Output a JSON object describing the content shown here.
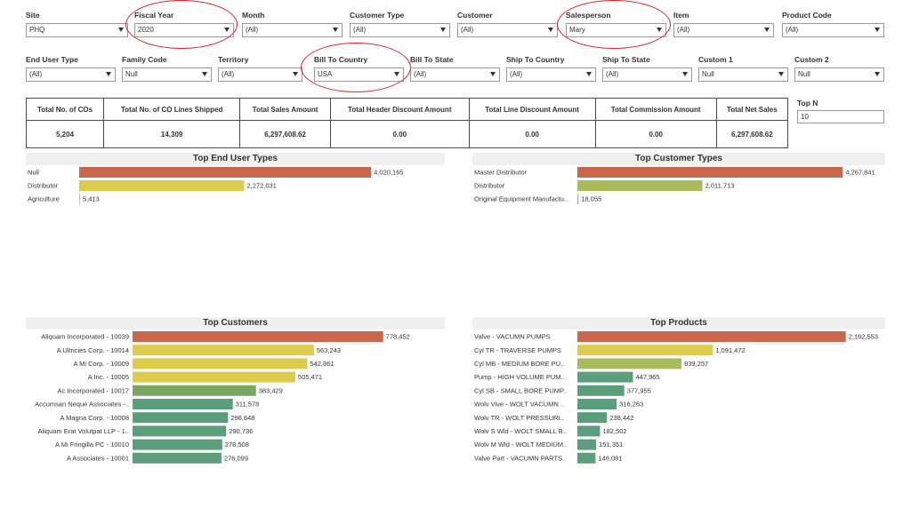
{
  "filters": [
    {
      "id": "site",
      "label": "Site",
      "value": "PHQ"
    },
    {
      "id": "fiscal-year",
      "label": "Fiscal Year",
      "value": "2020"
    },
    {
      "id": "month",
      "label": "Month",
      "value": "(All)"
    },
    {
      "id": "customer-type",
      "label": "Customer Type",
      "value": "(All)"
    },
    {
      "id": "customer",
      "label": "Customer",
      "value": "(All)"
    },
    {
      "id": "salesperson",
      "label": "Salesperson",
      "value": "Mary"
    },
    {
      "id": "item",
      "label": "Item",
      "value": "(All)"
    },
    {
      "id": "product-code",
      "label": "Product Code",
      "value": "(All)"
    },
    {
      "id": "end-user-type",
      "label": "End User Type",
      "value": "(All)"
    },
    {
      "id": "family-code",
      "label": "Family Code",
      "value": "Null"
    },
    {
      "id": "territory",
      "label": "Territory",
      "value": "(All)"
    },
    {
      "id": "bill-to-country",
      "label": "Bill To Country",
      "value": "USA"
    },
    {
      "id": "bill-to-state",
      "label": "Bill To State",
      "value": "(All)"
    },
    {
      "id": "ship-to-country",
      "label": "Ship To Country",
      "value": "(All)"
    },
    {
      "id": "ship-to-state",
      "label": "Ship To State",
      "value": "(All)"
    },
    {
      "id": "custom-1",
      "label": "Custom 1",
      "value": "Null"
    },
    {
      "id": "custom-2",
      "label": "Custom 2",
      "value": "Null"
    }
  ],
  "kpis": {
    "headers": [
      "Total No. of COs",
      "Total No. of CO Lines Shipped",
      "Total Sales Amount",
      "Total Header Discount Amount",
      "Total Line Discount Amount",
      "Total Commission Amount",
      "Total Net Sales"
    ],
    "values": [
      "5,204",
      "14,309",
      "6,297,608.62",
      "0.00",
      "0.00",
      "0.00",
      "6,297,608.62"
    ]
  },
  "top_n": {
    "label": "Top N",
    "value": "10"
  },
  "chart_data": [
    {
      "type": "bar",
      "orientation": "horizontal",
      "title": "Top End User Types",
      "categories": [
        "Null",
        "Distributor",
        "Agriculture"
      ],
      "values": [
        4020165,
        2272031,
        5413
      ],
      "value_labels": [
        "4,020,165",
        "2,272,031",
        "5,413"
      ],
      "colors": [
        "#c9674c",
        "#ddcb4b",
        "#ddcb4b"
      ],
      "label_align": "left",
      "xlim": [
        0,
        4900000
      ]
    },
    {
      "type": "bar",
      "orientation": "horizontal",
      "title": "Top Customer Types",
      "categories": [
        "Master Distributor",
        "Distributor",
        "Original Equipment Manufactu.."
      ],
      "values": [
        4267841,
        2011713,
        18055
      ],
      "value_labels": [
        "4,267,841",
        "2,011,713",
        "18,055"
      ],
      "colors": [
        "#c9674c",
        "#a9bc5c",
        "#a9bc5c"
      ],
      "label_align": "left",
      "xlim": [
        0,
        4950000
      ]
    },
    {
      "type": "bar",
      "orientation": "horizontal",
      "title": "Top Customers",
      "categories": [
        "Aliquam Incorporated - 10039",
        "A Ultricies Corp. - 10014",
        "A Mi Corp. - 10009",
        "A Inc. - 10005",
        "Ac Incorporated - 10017",
        "Accumsan Neque Associates -..",
        "A Magna Corp. - 10008",
        "Aliquam Erat Volutpat LLP - 1..",
        "A Mi Fringilla PC - 10010",
        "A Associates - 10001"
      ],
      "values": [
        778452,
        563243,
        542861,
        505471,
        383429,
        311578,
        296648,
        290736,
        278508,
        276099
      ],
      "value_labels": [
        "778,452",
        "563,243",
        "542,861",
        "505,471",
        "383,429",
        "311,578",
        "296,648",
        "290,736",
        "278,508",
        "276,099"
      ],
      "colors": [
        "#c9674c",
        "#ddcb4b",
        "#ddcb4b",
        "#ddcb4b",
        "#7aa563",
        "#5c9e7c",
        "#5c9e7c",
        "#5c9e7c",
        "#5c9e7c",
        "#5c9e7c"
      ],
      "label_align": "right",
      "xlim": [
        0,
        970000
      ]
    },
    {
      "type": "bar",
      "orientation": "horizontal",
      "title": "Top Products",
      "categories": [
        "Valve - VACUMN PUMPS",
        "Cyl TR - TRAVERSE PUMPS",
        "Cyl MB - MEDIUM BORE PU..",
        "Pump - HIGH VOLUME PUM..",
        "Cyl SB - SMALL BORE PUMP..",
        "Wolv Vive - WOLT VACUMN ..",
        "Wolv TR - WOLT PRESSURI..",
        "Wolv S Wld - WOLT SMALL B..",
        "Wolv M Wld - WOLT MEDIUM..",
        "Valve Part - VACUMN PARTS.."
      ],
      "values": [
        2162553,
        1091472,
        839257,
        447965,
        377955,
        316263,
        238442,
        182502,
        151351,
        146081
      ],
      "value_labels": [
        "2,162,553",
        "1,091,472",
        "839,257",
        "447,965",
        "377,955",
        "316,263",
        "238,442",
        "182,502",
        "151,351",
        "146,081"
      ],
      "colors": [
        "#c9674c",
        "#ddcb4b",
        "#a9bc5c",
        "#5c9e7c",
        "#5c9e7c",
        "#5c9e7c",
        "#5c9e7c",
        "#5c9e7c",
        "#5c9e7c",
        "#5c9e7c"
      ],
      "label_align": "left",
      "xlim": [
        0,
        2480000
      ]
    }
  ]
}
